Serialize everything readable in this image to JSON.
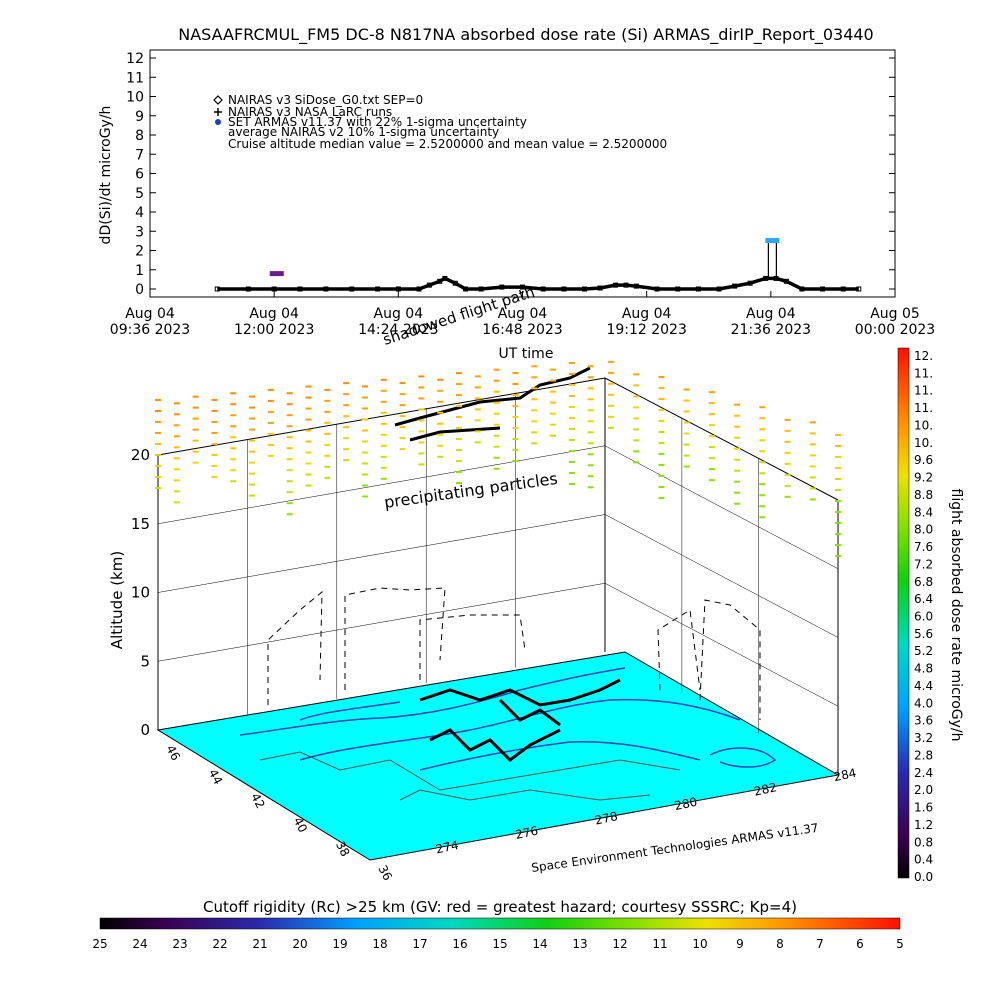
{
  "title": "NASAAFRCMUL_FM5 DC-8   N817NA absorbed dose rate (Si) ARMAS_dirIP_Report_03440",
  "chart_data": [
    {
      "type": "line",
      "ylabel": "dD(Si)/dt microGy/h",
      "xlabel": "UT time",
      "ylim": [
        0,
        12
      ],
      "yticks": [
        "0",
        "1",
        "2",
        "3",
        "4",
        "5",
        "6",
        "7",
        "8",
        "9",
        "10",
        "11",
        "12"
      ],
      "xticks": [
        {
          "day": "Aug 04",
          "time": "09:36 2023"
        },
        {
          "day": "Aug 04",
          "time": "12:00 2023"
        },
        {
          "day": "Aug 04",
          "time": "14:24 2023"
        },
        {
          "day": "Aug 04",
          "time": "16:48 2023"
        },
        {
          "day": "Aug 04",
          "time": "19:12 2023"
        },
        {
          "day": "Aug 04",
          "time": "21:36 2023"
        },
        {
          "day": "Aug 05",
          "time": "00:00 2023"
        }
      ],
      "x_hours_range": [
        9.6,
        24.0
      ],
      "legend": [
        "NAIRAS v3 SiDose_G0.txt SEP=0",
        "NAIRAS v3 NASA LaRC runs",
        "SET ARMAS v11.37 with 22% 1-sigma uncertainty",
        "average NAIRAS v2 10% 1-sigma uncertainty",
        "Cruise altitude median value = 2.5200000 and mean value = 2.5200000"
      ],
      "series": [
        {
          "name": "NAIRAS v3 SiDose_G0.txt SEP=0",
          "x": [
            10.9,
            11.5,
            12.0,
            12.5,
            13.0,
            13.5,
            14.0,
            14.4,
            14.8,
            15.0,
            15.2,
            15.3,
            15.5,
            15.7,
            16.0,
            16.4,
            16.8,
            17.2,
            17.6,
            18.0,
            18.3,
            18.6,
            18.8,
            19.0,
            19.4,
            19.8,
            20.2,
            20.6,
            20.9,
            21.2,
            21.5,
            21.7,
            21.9,
            22.2,
            22.6,
            23.0,
            23.3
          ],
          "y": [
            0.0,
            0.0,
            0.0,
            0.0,
            0.0,
            0.0,
            0.0,
            0.0,
            0.0,
            0.2,
            0.4,
            0.55,
            0.3,
            0.0,
            0.0,
            0.1,
            0.1,
            0.0,
            0.0,
            0.0,
            0.05,
            0.2,
            0.2,
            0.15,
            0.0,
            0.0,
            0.0,
            0.0,
            0.15,
            0.3,
            0.55,
            0.55,
            0.4,
            0.0,
            0.0,
            0.0,
            0.0
          ]
        },
        {
          "name": "SET ARMAS v11.37 with 22% 1-sigma uncertainty",
          "points": [
            {
              "x": 12.05,
              "y": 0.8,
              "color": "#6a1b8a"
            },
            {
              "x": 21.63,
              "y": 2.52,
              "color": "#2aa8f0"
            }
          ]
        }
      ]
    },
    {
      "type": "3d-map",
      "zlabel": "Altitude (km)",
      "zticks": [
        "0",
        "5",
        "10",
        "15",
        "20"
      ],
      "lat_ticks": [
        "46",
        "44",
        "42",
        "40",
        "38",
        "36"
      ],
      "lon_ticks": [
        "274",
        "276",
        "278",
        "280",
        "282",
        "284"
      ],
      "annotations": [
        "precipitating particles",
        "shadowed flight path"
      ],
      "credit": "Space Environment Technologies ARMAS v11.37"
    },
    {
      "type": "colorbar",
      "label": "flight absorbed dose rate microGy/h",
      "ticks": [
        "12.",
        "11.",
        "11.",
        "11.",
        "10.",
        "10.",
        "9.6",
        "9.2",
        "8.8",
        "8.4",
        "8.0",
        "7.6",
        "7.2",
        "6.8",
        "6.4",
        "6.0",
        "5.6",
        "5.2",
        "4.8",
        "4.4",
        "4.0",
        "3.6",
        "3.2",
        "2.8",
        "2.4",
        "2.0",
        "1.6",
        "1.2",
        "0.8",
        "0.4",
        "0.0"
      ]
    },
    {
      "type": "colorbar",
      "label": "Cutoff rigidity (Rc) >25 km (GV: red = greatest hazard; courtesy SSSRC; Kp=4)",
      "ticks": [
        "25",
        "24",
        "23",
        "22",
        "21",
        "20",
        "19",
        "18",
        "17",
        "16",
        "15",
        "14",
        "13",
        "12",
        "11",
        "10",
        "9",
        "8",
        "7",
        "6",
        "5"
      ]
    }
  ]
}
